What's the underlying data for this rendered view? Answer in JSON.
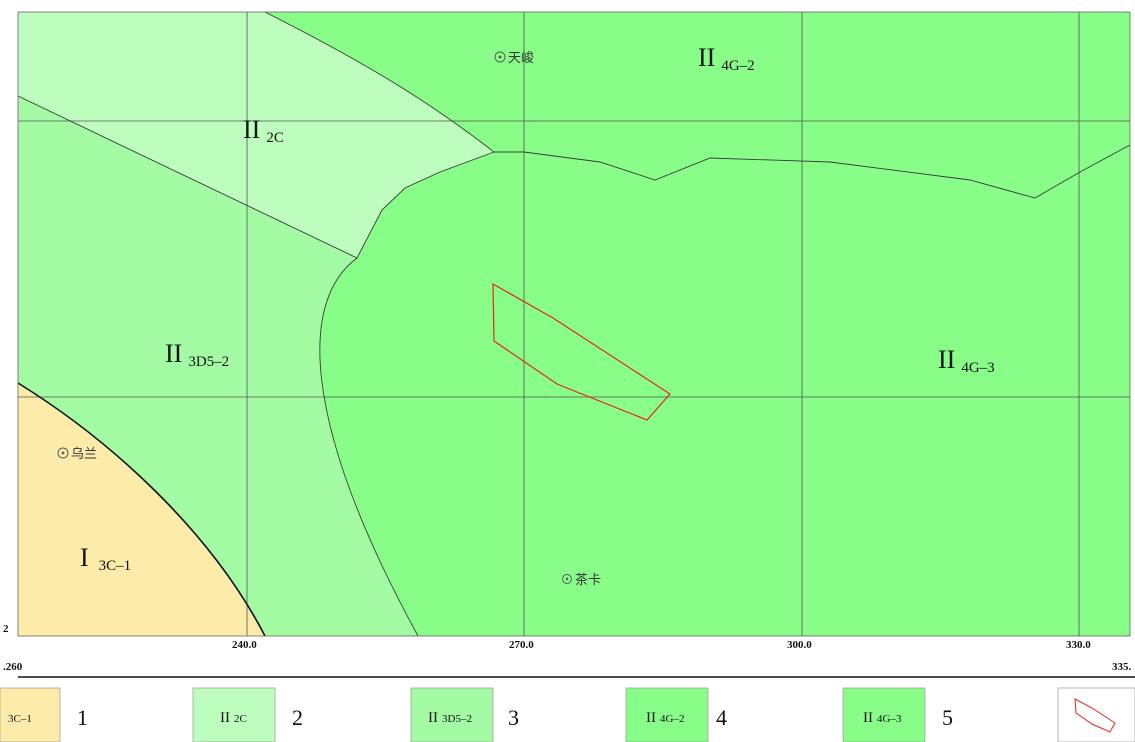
{
  "map": {
    "zones": [
      {
        "id": "I3C-1",
        "roman": "I",
        "sub": "3C–1",
        "color": "#FDEBAA"
      },
      {
        "id": "II2C",
        "roman": "II",
        "sub": "2C",
        "color": "#BDFDBD"
      },
      {
        "id": "II3D5-2",
        "roman": "II",
        "sub": "3D5–2",
        "color": "#A3FBA3"
      },
      {
        "id": "II4G-2",
        "roman": "II",
        "sub": "4G–2",
        "color": "#88FD88"
      },
      {
        "id": "II4G-3",
        "roman": "II",
        "sub": "4G–3",
        "color": "#88FD88"
      }
    ],
    "places": [
      {
        "name": "天峻",
        "symbol": "⊙"
      },
      {
        "name": "乌兰",
        "symbol": "⊙"
      },
      {
        "name": "茶卡",
        "symbol": "⊙"
      }
    ],
    "x_ticks": [
      "240.0",
      "270.0",
      "300.0",
      "330.0"
    ],
    "corner_left": ".260",
    "corner_right": "335.",
    "corner_left_top": "2",
    "study_area_color": "#E8261C",
    "grid_color": "#555555",
    "boundary_color": "#3a3a3a"
  },
  "legend": {
    "items": [
      {
        "roman": "",
        "code": "3C–1",
        "number": "1",
        "color": "#FDEBAA"
      },
      {
        "roman": "II",
        "code": "2C",
        "number": "2",
        "color": "#BDFDBD"
      },
      {
        "roman": "II",
        "code": "3D5–2",
        "number": "3",
        "color": "#A3FBA3"
      },
      {
        "roman": "II",
        "code": "4G–2",
        "number": "4",
        "color": "#88FD88"
      },
      {
        "roman": "II",
        "code": "4G–3",
        "number": "5",
        "color": "#88FD88"
      }
    ]
  }
}
